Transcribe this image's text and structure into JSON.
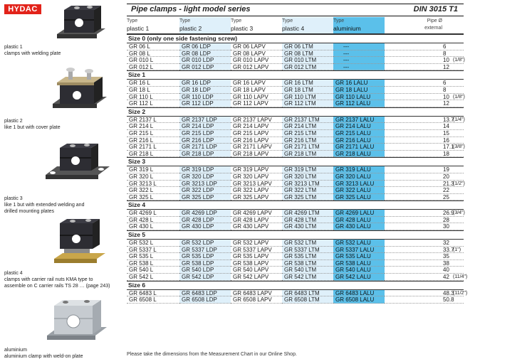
{
  "brand": {
    "logo_text": "HYDAC",
    "logo_color": "#e2231a"
  },
  "header": {
    "title": "Pipe clamps - light model series",
    "standard": "DIN 3015 T1"
  },
  "columns": [
    {
      "l1": "Type",
      "l2": "plastic 1"
    },
    {
      "l1": "Type",
      "l2": "plastic 2"
    },
    {
      "l1": "Type",
      "l2": "plastic 3"
    },
    {
      "l1": "Type",
      "l2": "plastic 4"
    },
    {
      "l1": "Type",
      "l2": "aluminium"
    },
    {
      "l1": "Pipe Ø",
      "l2": "external"
    }
  ],
  "captions": [
    {
      "l1": "plastic 1",
      "l2": "clamps with welding plate",
      "l3": ""
    },
    {
      "l1": "plastic 2",
      "l2": "like 1 but with cover plate",
      "l3": ""
    },
    {
      "l1": "plastic 3",
      "l2": "like 1 but with extended welding and",
      "l3": "drilled mounting plates"
    },
    {
      "l1": "plastic 4",
      "l2": "clamps with carrier rail nuts KMA type to",
      "l3": "assemble on C carrier rails TS 28 … (page 243)"
    },
    {
      "l1": "aluminium",
      "l2": "aluminium clamp with weld-on plate",
      "l3": ""
    }
  ],
  "sizes": [
    {
      "label": "Size 0  (only one side fastening screw)",
      "rows": [
        [
          "GR 06 L",
          "GR 06 LDP",
          "GR 06 LAPV",
          "GR 06 LTM",
          "---",
          "6",
          ""
        ],
        [
          "GR 08 L",
          "GR 08 LDP",
          "GR 08 LAPV",
          "GR 08 LTM",
          "---",
          "8",
          ""
        ],
        [
          "GR 010 L",
          "GR 010 LDP",
          "GR 010 LAPV",
          "GR 010 LTM",
          "---",
          "10",
          "(1/8\")"
        ],
        [
          "GR 012 L",
          "GR 012 LDP",
          "GR 012 LAPV",
          "GR 012 LTM",
          "---",
          "12",
          ""
        ]
      ]
    },
    {
      "label": "Size 1",
      "rows": [
        [
          "GR 16 L",
          "GR 16 LDP",
          "GR 16 LAPV",
          "GR 16 LTM",
          "GR 16 LALU",
          "6",
          ""
        ],
        [
          "GR 18 L",
          "GR 18 LDP",
          "GR 18 LAPV",
          "GR 18 LTM",
          "GR 18 LALU",
          "8",
          ""
        ],
        [
          "GR 110 L",
          "GR 110 LDP",
          "GR 110 LAPV",
          "GR 110 LTM",
          "GR 110 LALU",
          "10",
          "(1/8\")"
        ],
        [
          "GR 112 L",
          "GR 112 LDP",
          "GR 112 LAPV",
          "GR 112 LTM",
          "GR 112 LALU",
          "12",
          ""
        ]
      ]
    },
    {
      "label": "Size 2",
      "rows": [
        [
          "GR 2137 L",
          "GR 2137 LDP",
          "GR 2137 LAPV",
          "GR 2137 LTM",
          "GR 2137 LALU",
          "13.7",
          "(1/4\")"
        ],
        [
          "GR 214 L",
          "GR 214 LDP",
          "GR 214 LAPV",
          "GR 214 LTM",
          "GR 214 LALU",
          "14",
          ""
        ],
        [
          "GR 215 L",
          "GR 215 LDP",
          "GR 215 LAPV",
          "GR 215 LTM",
          "GR 215 LALU",
          "15",
          ""
        ],
        [
          "GR 216 L",
          "GR 216 LDP",
          "GR 216 LAPV",
          "GR 216 LTM",
          "GR 216 LALU",
          "16",
          ""
        ],
        [
          "GR 2171 L",
          "GR 2171 LDP",
          "GR 2171 LAPV",
          "GR 2171 LTM",
          "GR 2171 LALU",
          "17.1",
          "(3/8\")"
        ],
        [
          "GR 218 L",
          "GR 218 LDP",
          "GR 218 LAPV",
          "GR 218 LTM",
          "GR 218 LALU",
          "18",
          ""
        ]
      ]
    },
    {
      "label": "Size 3",
      "rows": [
        [
          "GR 319 L",
          "GR 319 LDP",
          "GR 319 LAPV",
          "GR 319 LTM",
          "GR 319 LALU",
          "19",
          ""
        ],
        [
          "GR 320 L",
          "GR 320 LDP",
          "GR 320 LAPV",
          "GR 320 LTM",
          "GR 320 LALU",
          "20",
          ""
        ],
        [
          "GR 3213 L",
          "GR 3213 LDP",
          "GR 3213 LAPV",
          "GR 3213 LTM",
          "GR 3213 LALU",
          "21.3",
          "(1/2\")"
        ],
        [
          "GR 322 L",
          "GR 322 LDP",
          "GR 322 LAPV",
          "GR 322 LTM",
          "GR 322 LALU",
          "22",
          ""
        ],
        [
          "GR 325 L",
          "GR 325 LDP",
          "GR 325 LAPV",
          "GR 325 LTM",
          "GR 325 LALU",
          "25",
          ""
        ]
      ]
    },
    {
      "label": "Size 4",
      "rows": [
        [
          "GR 4269 L",
          "GR 4269 LDP",
          "GR 4269 LAPV",
          "GR 4269 LTM",
          "GR 4269 LALU",
          "26.9",
          "(3/4\")"
        ],
        [
          "GR 428 L",
          "GR 428 LDP",
          "GR 428 LAPV",
          "GR 428 LTM",
          "GR 428 LALU",
          "28",
          ""
        ],
        [
          "GR 430 L",
          "GR 430 LDP",
          "GR 430 LAPV",
          "GR 430 LTM",
          "GR 430 LALU",
          "30",
          ""
        ]
      ]
    },
    {
      "label": "Size 5",
      "rows": [
        [
          "GR 532 L",
          "GR 532 LDP",
          "GR 532 LAPV",
          "GR 532 LTM",
          "GR 532 LALU",
          "32",
          ""
        ],
        [
          "GR 5337 L",
          "GR 5337 LDP",
          "GR 5337 LAPV",
          "GR 5337 LTM",
          "GR 5337 LALU",
          "33.7",
          "(1\")"
        ],
        [
          "GR 535 L",
          "GR 535 LDP",
          "GR 535 LAPV",
          "GR 535 LTM",
          "GR 535 LALU",
          "35",
          ""
        ],
        [
          "GR 538 L",
          "GR 538 LDP",
          "GR 538 LAPV",
          "GR 538 LTM",
          "GR 538 LALU",
          "38",
          ""
        ],
        [
          "GR 540 L",
          "GR 540 LDP",
          "GR 540 LAPV",
          "GR 540 LTM",
          "GR 540 LALU",
          "40",
          ""
        ],
        [
          "GR 542 L",
          "GR 542 LDP",
          "GR 542 LAPV",
          "GR 542 LTM",
          "GR 542 LALU",
          "42",
          "(11/4\")"
        ]
      ]
    },
    {
      "label": "Size 6",
      "rows": [
        [
          "GR 6483 L",
          "GR 6483 LDP",
          "GR 6483 LAPV",
          "GR 6483 LTM",
          "GR 6483 LALU",
          "48.3",
          "(11/2\")"
        ],
        [
          "GR 6508 L",
          "GR 6508 LDP",
          "GR 6508 LAPV",
          "GR 6508 LTM",
          "GR 6508 LALU",
          "50.8",
          ""
        ]
      ]
    }
  ],
  "footnote": "Please take the dimensions from the Measurement Chart in our Online Shop.",
  "colors": {
    "band_light": "#dff0fa",
    "band_alu": "#5bc0ea"
  }
}
